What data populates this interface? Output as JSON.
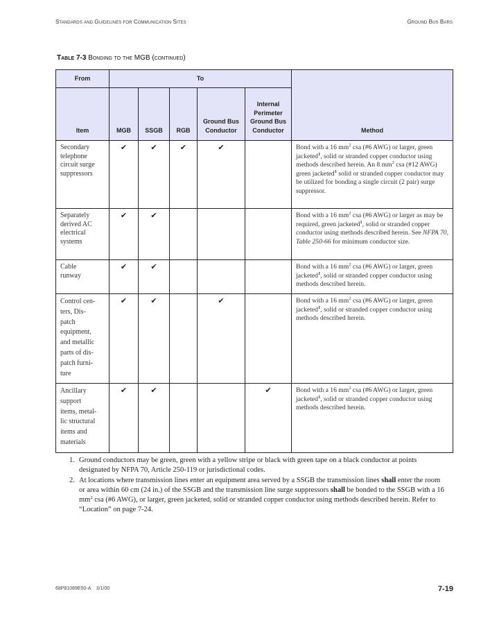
{
  "header": {
    "left": "Standards and Guidelines for Communication Sites",
    "right": "Ground Bus Bars"
  },
  "caption": {
    "label": "Table 7-3",
    "title": "Bonding to the MGB (continued)"
  },
  "table": {
    "group_headers": {
      "from": "From",
      "to": "To"
    },
    "columns": [
      "Item",
      "MGB",
      "SSGB",
      "RGB",
      "Ground Bus Conductor",
      "Internal Perimeter Ground Bus Conductor",
      "Method"
    ],
    "check_glyph": "✔",
    "rows": [
      {
        "item": [
          "Secondary",
          "telephone",
          "circuit surge",
          "suppressors"
        ],
        "checks": [
          true,
          true,
          true,
          true,
          false
        ],
        "method": [
          {
            "t": "Bond with a 16 mm"
          },
          {
            "t": "2",
            "s": "sup"
          },
          {
            "t": " csa (#6 AWG) or larger, green jacketed"
          },
          {
            "t": "1",
            "s": "supb"
          },
          {
            "t": ", solid or stranded copper conductor using methods described herein. An 8 mm"
          },
          {
            "t": "2",
            "s": "sup"
          },
          {
            "t": " csa (#12 AWG) green jacketed"
          },
          {
            "t": "1",
            "s": "supb"
          },
          {
            "t": " solid or stranded copper conductor may be utilized for bonding a single circuit (2 pair) surge suppressor."
          }
        ]
      },
      {
        "item": [
          "Separately",
          "derived AC",
          "electrical",
          "systems"
        ],
        "checks": [
          true,
          true,
          false,
          false,
          false
        ],
        "method": [
          {
            "t": "Bond with a 16 mm"
          },
          {
            "t": "2",
            "s": "sup"
          },
          {
            "t": " csa (#6 AWG) or larger as may be required, green jacketed"
          },
          {
            "t": "1",
            "s": "supb"
          },
          {
            "t": ", solid or stranded copper conductor using methods described herein. See "
          },
          {
            "t": "NFPA 70, Table 250-66",
            "s": "i"
          },
          {
            "t": " for minimum conductor size."
          }
        ]
      },
      {
        "item": [
          "Cable",
          "runway"
        ],
        "checks": [
          true,
          true,
          false,
          false,
          false
        ],
        "method": [
          {
            "t": "Bond with a 16 mm"
          },
          {
            "t": "2",
            "s": "sup"
          },
          {
            "t": " csa (#6 AWG) or larger, green jacketed"
          },
          {
            "t": "1",
            "s": "supb"
          },
          {
            "t": ", solid or stranded copper conductor using methods described herein."
          }
        ]
      },
      {
        "item": [
          "Control cen-",
          "ters, Dis-",
          "patch",
          "equipment,",
          "and metallic",
          "parts of dis-",
          "patch furni-",
          "ture"
        ],
        "checks": [
          true,
          true,
          false,
          true,
          false
        ],
        "method": [
          {
            "t": "Bond with a 16 mm"
          },
          {
            "t": "2",
            "s": "sup"
          },
          {
            "t": " csa (#6 AWG) or larger, green jacketed"
          },
          {
            "t": "1",
            "s": "supb"
          },
          {
            "t": ", solid or stranded copper conductor using methods described herein."
          }
        ]
      },
      {
        "item": [
          "Ancillary",
          "support",
          "items, metal-",
          "lic structural",
          "items and",
          "materials"
        ],
        "checks": [
          true,
          true,
          false,
          false,
          true
        ],
        "method": [
          {
            "t": "Bond with a 16 mm"
          },
          {
            "t": "2",
            "s": "sup"
          },
          {
            "t": " csa (#6 AWG) or larger, green jacketed"
          },
          {
            "t": "1",
            "s": "supb"
          },
          {
            "t": ", solid or stranded copper conductor using methods described herein."
          }
        ]
      }
    ]
  },
  "notes": [
    {
      "num": "1.",
      "parts": [
        {
          "t": "Ground conductors may be green, green with a yellow stripe or black with green tape on a black conductor at points designated by NFPA 70, Article 250-119 or jurisdictional codes."
        }
      ]
    },
    {
      "num": "2.",
      "parts": [
        {
          "t": "At locations where transmission lines enter an equipment area served by a SSGB the transmission lines "
        },
        {
          "t": "shall",
          "s": "b"
        },
        {
          "t": " enter the room or area within 60 cm (24 in.) of the SSGB and the transmission line surge suppressors "
        },
        {
          "t": "shall",
          "s": "b"
        },
        {
          "t": " be bonded to the SSGB with a 16 mm"
        },
        {
          "t": "2",
          "s": "sup"
        },
        {
          "t": " csa (#6 AWG), or larger, green jacketed, solid or stranded copper conductor using methods described herein. Refer to “Location” on page 7-24."
        }
      ]
    }
  ],
  "footer": {
    "doc_id": "68P81089E50-A    3/1/00",
    "page": "7-19"
  }
}
